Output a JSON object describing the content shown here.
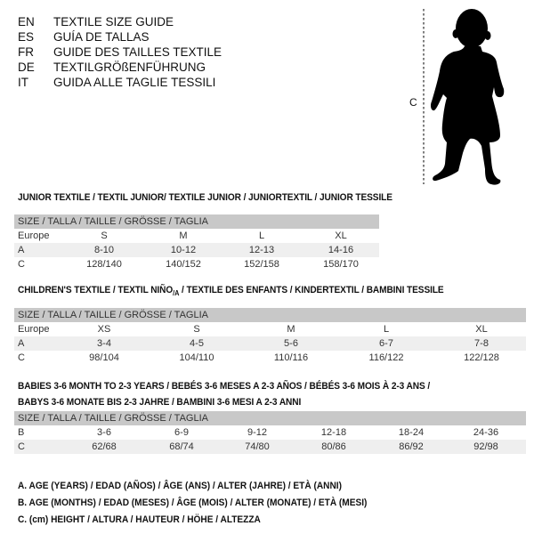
{
  "header": {
    "languages": [
      {
        "code": "EN",
        "text": "TEXTILE SIZE GUIDE"
      },
      {
        "code": "ES",
        "text": "GUÍA DE TALLAS"
      },
      {
        "code": "FR",
        "text": "GUIDE DES TAILLES TEXTILE"
      },
      {
        "code": "DE",
        "text": "TEXTILGRÖßENFÜHRUNG"
      },
      {
        "code": "IT",
        "text": "GUIDA ALLE TAGLIE TESSILI"
      }
    ]
  },
  "figure": {
    "measure_label": "C",
    "icon": "child-silhouette"
  },
  "junior": {
    "title": "JUNIOR TEXTILE / TEXTIL JUNIOR/ TEXTILE JUNIOR / JUNIORTEXTIL / JUNIOR TESSILE",
    "size_header": "SIZE / TALLA / TAILLE / GRÖSSE / TAGLIA",
    "rows": [
      {
        "label": "Europe",
        "values": [
          "S",
          "M",
          "L",
          "XL"
        ]
      },
      {
        "label": "A",
        "values": [
          "8-10",
          "10-12",
          "12-13",
          "14-16"
        ]
      },
      {
        "label": "C",
        "values": [
          "128/140",
          "140/152",
          "152/158",
          "158/170"
        ]
      }
    ]
  },
  "children": {
    "title_pre": "CHILDREN'S TEXTILE / TEXTIL NIÑO",
    "title_sub": "/A",
    "title_post": " / TEXTILE DES ENFANTS / KINDERTEXTIL / BAMBINI TESSILE",
    "size_header": "SIZE / TALLA / TAILLE / GRÖSSE / TAGLIA",
    "rows": [
      {
        "label": "Europe",
        "values": [
          "XS",
          "S",
          "M",
          "L",
          "XL"
        ]
      },
      {
        "label": "A",
        "values": [
          "3-4",
          "4-5",
          "5-6",
          "6-7",
          "7-8"
        ]
      },
      {
        "label": "C",
        "values": [
          "98/104",
          "104/110",
          "110/116",
          "116/122",
          "122/128"
        ]
      }
    ]
  },
  "babies": {
    "title_line1": "BABIES 3-6 MONTH TO 2-3 YEARS / BEBÉS 3-6 MESES A 2-3 AÑOS / BÉBÉS 3-6 MOIS À 2-3 ANS /",
    "title_line2": "BABYS 3-6 MONATE BIS 2-3 JAHRE / BAMBINI 3-6 MESI A 2-3 ANNI",
    "size_header": "SIZE / TALLA / TAILLE / GRÖSSE / TAGLIA",
    "rows": [
      {
        "label": "B",
        "values": [
          "3-6",
          "6-9",
          "9-12",
          "12-18",
          "18-24",
          "24-36"
        ]
      },
      {
        "label": "C",
        "values": [
          "62/68",
          "68/74",
          "74/80",
          "80/86",
          "86/92",
          "92/98"
        ]
      }
    ]
  },
  "legend": [
    "A. AGE (YEARS) / EDAD (AÑOS) / ÂGE (ANS) / ALTER (JAHRE) / ETÀ (ANNI)",
    "B. AGE (MONTHS) / EDAD (MESES) / ÂGE (MOIS) / ALTER (MONATE) / ETÀ (MESI)",
    "C. (cm) HEIGHT / ALTURA / HAUTEUR / HÖHE / ALTEZZA"
  ]
}
